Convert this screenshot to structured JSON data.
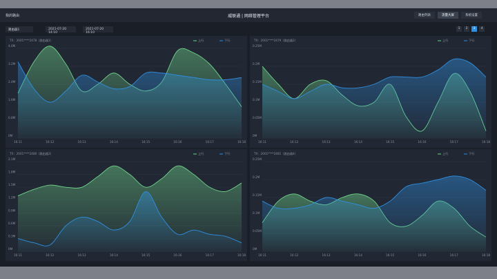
{
  "header": {
    "menu": "我的路由",
    "brand": "威联通 | 网络管理平台",
    "tabs": [
      "路由列表",
      "流量大屏",
      "系统设置"
    ],
    "active_tab": 1
  },
  "toolbar": {
    "device": "路由器1",
    "start": "2021-07-20 14:10",
    "end": "2021-07-20 16:10",
    "pages": [
      "1",
      "2",
      "3",
      "4"
    ],
    "active_page": 2
  },
  "chart_data": [
    {
      "type": "line",
      "title": "TX：2001****2478（路由器1）",
      "categories": [
        "16:11",
        null,
        "16:12",
        null,
        "16:13",
        null,
        "16:14",
        null,
        "16:15",
        null,
        "16:16",
        null,
        "16:17",
        null,
        "16:18"
      ],
      "series": [
        {
          "name": "上行",
          "color": "#6fd38a",
          "values": [
            2.0,
            3.4,
            4.1,
            3.3,
            2.1,
            2.4,
            2.9,
            2.4,
            2.1,
            2.5,
            3.9,
            3.8,
            3.3,
            2.4,
            1.4
          ]
        },
        {
          "name": "下行",
          "color": "#2f8fe0",
          "values": [
            3.4,
            2.2,
            1.6,
            2.1,
            2.8,
            2.5,
            2.2,
            2.3,
            2.9,
            2.9,
            2.8,
            2.7,
            2.6,
            2.6,
            2.7
          ]
        }
      ],
      "ylim": [
        0,
        4.0
      ],
      "yticks": [
        {
          "value": 0,
          "label": "0M"
        },
        {
          "value": 0.8,
          "label": "0.8M"
        },
        {
          "value": 1.6,
          "label": "1.6M"
        },
        {
          "value": 2.4,
          "label": "2.4M"
        },
        {
          "value": 3.2,
          "label": "3.2M"
        },
        {
          "value": 4.0,
          "label": "4.0M"
        }
      ]
    },
    {
      "type": "line",
      "title": "TX：2001****2479（路由器2）",
      "categories": [
        "16:11",
        null,
        "16:12",
        null,
        "16:13",
        null,
        "16:14",
        null,
        "16:15",
        null,
        "16:16",
        null,
        "16:17",
        null,
        "16:18"
      ],
      "series": [
        {
          "name": "上行",
          "color": "#6fd38a",
          "values": [
            0.2,
            0.15,
            0.11,
            0.15,
            0.16,
            0.12,
            0.09,
            0.1,
            0.15,
            0.06,
            0.02,
            0.1,
            0.18,
            0.13,
            0.02
          ]
        },
        {
          "name": "下行",
          "color": "#2f8fe0",
          "values": [
            0.15,
            0.13,
            0.11,
            0.13,
            0.15,
            0.14,
            0.14,
            0.15,
            0.17,
            0.17,
            0.17,
            0.19,
            0.22,
            0.21,
            0.17
          ]
        }
      ],
      "ylim": [
        0,
        0.25
      ],
      "yticks": [
        {
          "value": 0,
          "label": "0M"
        },
        {
          "value": 0.05,
          "label": "0.05M"
        },
        {
          "value": 0.1,
          "label": "0.1M"
        },
        {
          "value": 0.15,
          "label": "0.15M"
        },
        {
          "value": 0.2,
          "label": "0.2M"
        },
        {
          "value": 0.25,
          "label": "0.25M"
        }
      ]
    },
    {
      "type": "line",
      "title": "TX：2001****2480（路由器3）",
      "categories": [
        "16:11",
        null,
        "16:12",
        null,
        "16:13",
        null,
        "16:14",
        null,
        "16:15",
        null,
        "16:16",
        null,
        "16:17",
        null,
        "16:18"
      ],
      "series": [
        {
          "name": "上行",
          "color": "#6fd38a",
          "values": [
            1.3,
            1.45,
            1.55,
            1.5,
            1.5,
            1.75,
            2.0,
            1.8,
            1.5,
            1.7,
            2.0,
            1.8,
            1.5,
            1.4,
            1.6
          ]
        },
        {
          "name": "下行",
          "color": "#2f8fe0",
          "values": [
            0.3,
            0.2,
            0.15,
            0.6,
            0.8,
            0.7,
            0.5,
            0.7,
            1.4,
            0.8,
            0.4,
            0.5,
            0.4,
            0.35,
            0.2
          ]
        }
      ],
      "ylim": [
        0,
        2.1
      ],
      "yticks": [
        {
          "value": 0,
          "label": "0M"
        },
        {
          "value": 0.3,
          "label": "0.3M"
        },
        {
          "value": 0.6,
          "label": "0.6M"
        },
        {
          "value": 0.9,
          "label": "0.9M"
        },
        {
          "value": 1.2,
          "label": "1.2M"
        },
        {
          "value": 1.5,
          "label": "1.5M"
        },
        {
          "value": 1.8,
          "label": "1.8M"
        },
        {
          "value": 2.1,
          "label": "2.1M"
        }
      ]
    },
    {
      "type": "line",
      "title": "TX：2001****2481（路由器4）",
      "categories": [
        "16:11",
        null,
        "16:12",
        null,
        "16:13",
        null,
        "16:14",
        null,
        "16:15",
        null,
        "16:16",
        null,
        "16:17",
        null,
        "16:18"
      ],
      "series": [
        {
          "name": "上行",
          "color": "#6fd38a",
          "values": [
            0.08,
            0.14,
            0.16,
            0.14,
            0.13,
            0.15,
            0.16,
            0.14,
            0.08,
            0.07,
            0.1,
            0.14,
            0.12,
            0.07,
            0.04
          ]
        },
        {
          "name": "下行",
          "color": "#2f8fe0",
          "values": [
            0.14,
            0.12,
            0.12,
            0.13,
            0.15,
            0.14,
            0.13,
            0.12,
            0.14,
            0.18,
            0.19,
            0.2,
            0.21,
            0.2,
            0.17
          ]
        }
      ],
      "ylim": [
        0,
        0.25
      ],
      "yticks": [
        {
          "value": 0,
          "label": "0M"
        },
        {
          "value": 0.05,
          "label": "0.05M"
        },
        {
          "value": 0.1,
          "label": "0.1M"
        },
        {
          "value": 0.15,
          "label": "0.15M"
        },
        {
          "value": 0.2,
          "label": "0.2M"
        },
        {
          "value": 0.25,
          "label": "0.25M"
        }
      ]
    }
  ]
}
